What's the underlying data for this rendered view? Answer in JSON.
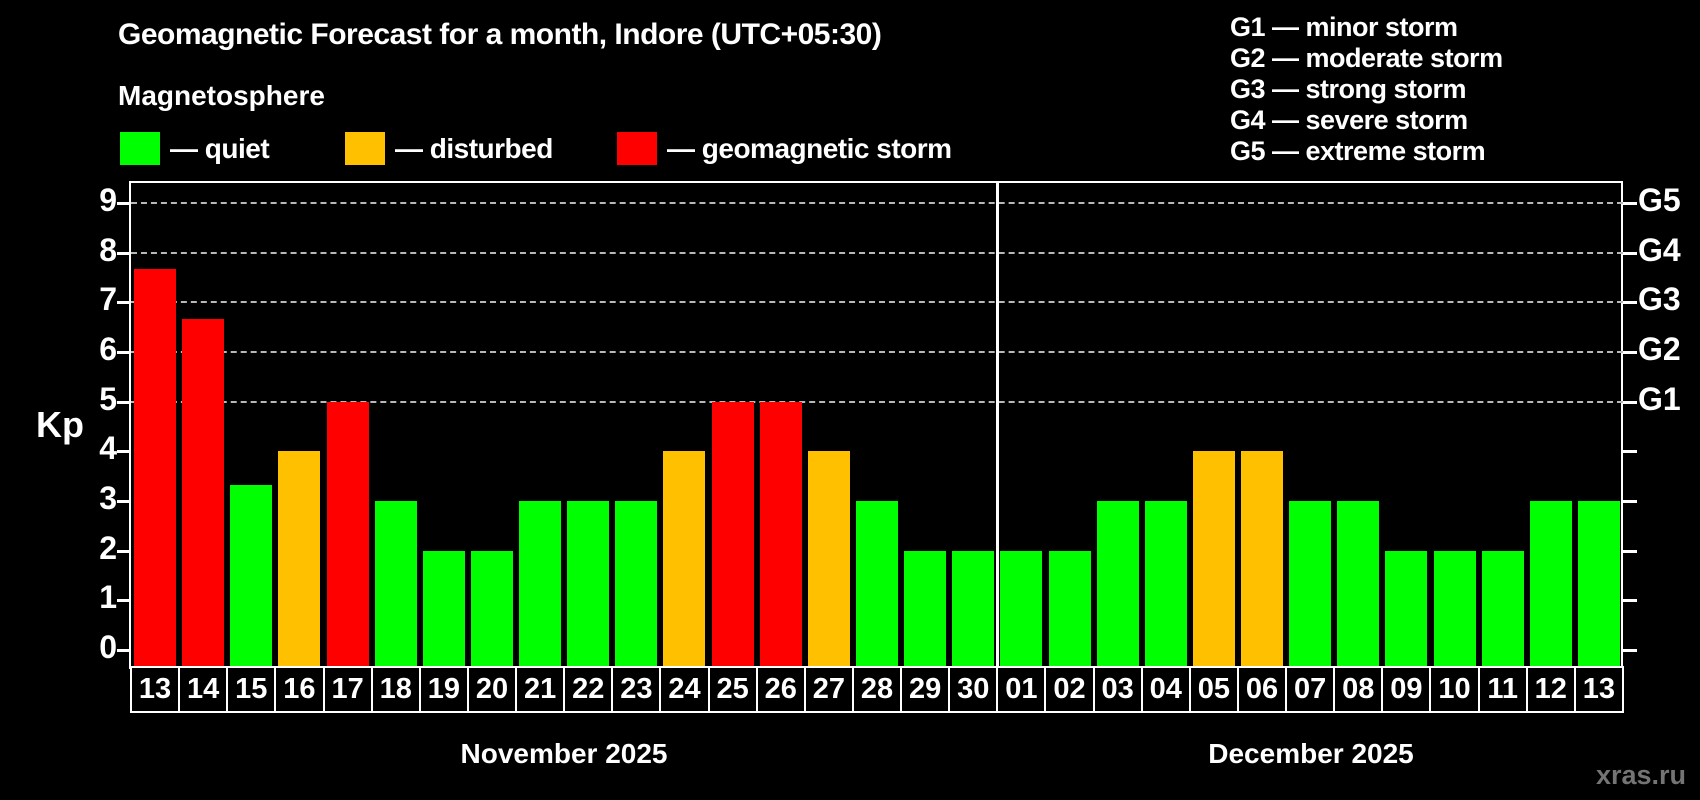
{
  "title": "Geomagnetic Forecast for a month, Indore (UTC+05:30)",
  "subtitle": "Magnetosphere",
  "legend": {
    "items": [
      {
        "key": "quiet",
        "label": "— quiet",
        "color": "#00ff00"
      },
      {
        "key": "disturbed",
        "label": "— disturbed",
        "color": "#ffc000"
      },
      {
        "key": "storm",
        "label": "— geomagnetic storm",
        "color": "#ff0000"
      }
    ]
  },
  "g_scale_legend": [
    "G1 — minor storm",
    "G2 — moderate storm",
    "G3 — strong storm",
    "G4 — severe storm",
    "G5 — extreme storm"
  ],
  "chart_data": {
    "type": "bar",
    "ylabel": "Kp",
    "ylim": [
      0,
      9.4
    ],
    "yticks": [
      0,
      1,
      2,
      3,
      4,
      5,
      6,
      7,
      8,
      9
    ],
    "gridlines_at_kp": [
      5,
      6,
      7,
      8,
      9
    ],
    "right_axis_labels": [
      {
        "label": "G1",
        "kp": 5
      },
      {
        "label": "G2",
        "kp": 6
      },
      {
        "label": "G3",
        "kp": 7
      },
      {
        "label": "G4",
        "kp": 8
      },
      {
        "label": "G5",
        "kp": 9
      }
    ],
    "legend_position": "top",
    "grid": true,
    "months": [
      {
        "label": "November 2025",
        "days": [
          {
            "date": "13",
            "kp": 7.67,
            "level": "storm"
          },
          {
            "date": "14",
            "kp": 6.67,
            "level": "storm"
          },
          {
            "date": "15",
            "kp": 3.33,
            "level": "quiet"
          },
          {
            "date": "16",
            "kp": 4,
            "level": "disturbed"
          },
          {
            "date": "17",
            "kp": 5,
            "level": "storm"
          },
          {
            "date": "18",
            "kp": 3,
            "level": "quiet"
          },
          {
            "date": "19",
            "kp": 2,
            "level": "quiet"
          },
          {
            "date": "20",
            "kp": 2,
            "level": "quiet"
          },
          {
            "date": "21",
            "kp": 3,
            "level": "quiet"
          },
          {
            "date": "22",
            "kp": 3,
            "level": "quiet"
          },
          {
            "date": "23",
            "kp": 3,
            "level": "quiet"
          },
          {
            "date": "24",
            "kp": 4,
            "level": "disturbed"
          },
          {
            "date": "25",
            "kp": 5,
            "level": "storm"
          },
          {
            "date": "26",
            "kp": 5,
            "level": "storm"
          },
          {
            "date": "27",
            "kp": 4,
            "level": "disturbed"
          },
          {
            "date": "28",
            "kp": 3,
            "level": "quiet"
          },
          {
            "date": "29",
            "kp": 2,
            "level": "quiet"
          },
          {
            "date": "30",
            "kp": 2,
            "level": "quiet"
          }
        ]
      },
      {
        "label": "December 2025",
        "days": [
          {
            "date": "01",
            "kp": 2,
            "level": "quiet"
          },
          {
            "date": "02",
            "kp": 2,
            "level": "quiet"
          },
          {
            "date": "03",
            "kp": 3,
            "level": "quiet"
          },
          {
            "date": "04",
            "kp": 3,
            "level": "quiet"
          },
          {
            "date": "05",
            "kp": 4,
            "level": "disturbed"
          },
          {
            "date": "06",
            "kp": 4,
            "level": "disturbed"
          },
          {
            "date": "07",
            "kp": 3,
            "level": "quiet"
          },
          {
            "date": "08",
            "kp": 3,
            "level": "quiet"
          },
          {
            "date": "09",
            "kp": 2,
            "level": "quiet"
          },
          {
            "date": "10",
            "kp": 2,
            "level": "quiet"
          },
          {
            "date": "11",
            "kp": 2,
            "level": "quiet"
          },
          {
            "date": "12",
            "kp": 3,
            "level": "quiet"
          },
          {
            "date": "13",
            "kp": 3,
            "level": "quiet"
          }
        ]
      }
    ]
  },
  "colors": {
    "background": "#000000",
    "quiet": "#00ff00",
    "disturbed": "#ffc000",
    "storm": "#ff0000",
    "axis": "#ffffff",
    "gridline": "#b8b8b8",
    "watermark_text": "#747474"
  },
  "watermark": "xras.ru"
}
